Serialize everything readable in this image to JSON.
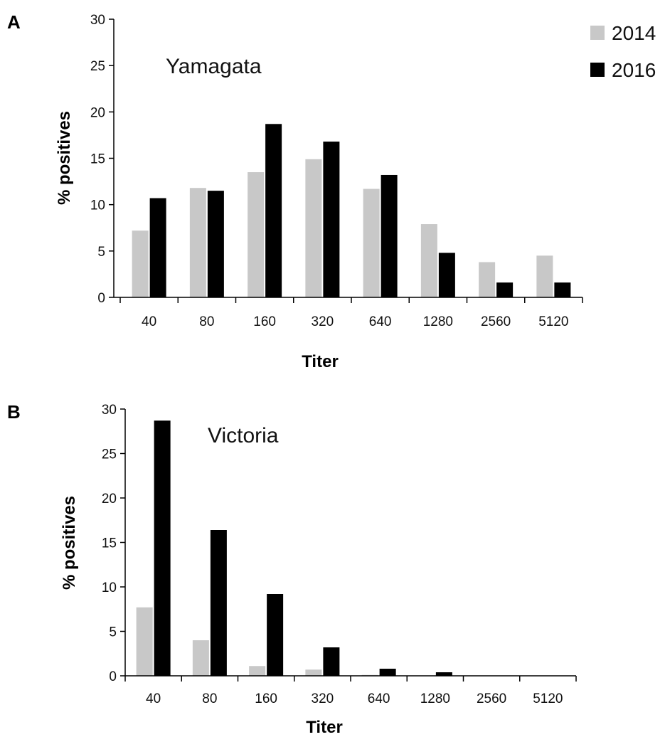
{
  "legend": [
    {
      "label": "2014",
      "color": "#c8c8c8"
    },
    {
      "label": "2016",
      "color": "#000000"
    }
  ],
  "chart_data": [
    {
      "type": "bar",
      "panel_label": "A",
      "annotation": "Yamagata",
      "title": "",
      "xlabel": "Titer",
      "ylabel": "% positives",
      "ylim": [
        0,
        30
      ],
      "yticks": [
        0,
        5,
        10,
        15,
        20,
        25,
        30
      ],
      "categories": [
        "40",
        "80",
        "160",
        "320",
        "640",
        "1280",
        "2560",
        "5120"
      ],
      "legend_position": "top-right",
      "series": [
        {
          "name": "2014",
          "color": "#c8c8c8",
          "values": [
            7.2,
            11.8,
            13.5,
            14.9,
            11.7,
            7.9,
            3.8,
            4.5
          ]
        },
        {
          "name": "2016",
          "color": "#000000",
          "values": [
            10.7,
            11.5,
            18.7,
            16.8,
            13.2,
            4.8,
            1.6,
            1.6
          ]
        }
      ]
    },
    {
      "type": "bar",
      "panel_label": "B",
      "annotation": "Victoria",
      "title": "",
      "xlabel": "Titer",
      "ylabel": "% positives",
      "ylim": [
        0,
        30
      ],
      "yticks": [
        0,
        5,
        10,
        15,
        20,
        25,
        30
      ],
      "categories": [
        "40",
        "80",
        "160",
        "320",
        "640",
        "1280",
        "2560",
        "5120"
      ],
      "series": [
        {
          "name": "2014",
          "color": "#c8c8c8",
          "values": [
            7.7,
            4.0,
            1.1,
            0.7,
            0.1,
            0.0,
            0.0,
            0.0
          ]
        },
        {
          "name": "2016",
          "color": "#000000",
          "values": [
            28.7,
            16.4,
            9.2,
            3.2,
            0.8,
            0.4,
            0.0,
            0.0
          ]
        }
      ]
    }
  ]
}
